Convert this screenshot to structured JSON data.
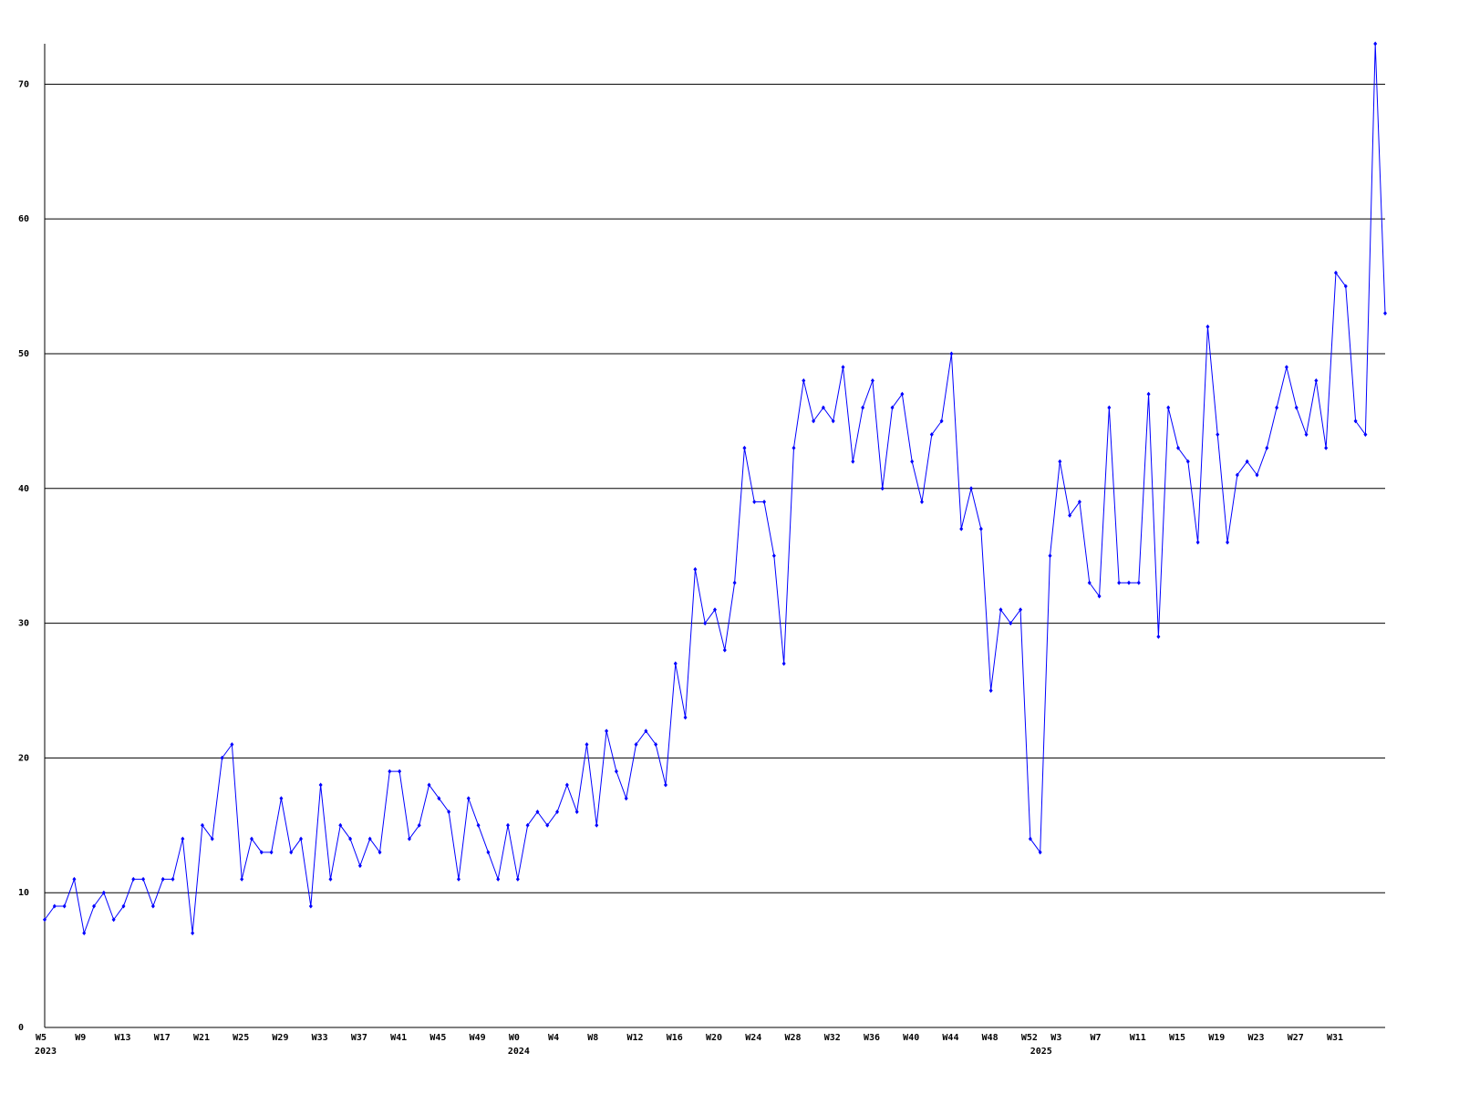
{
  "chart_data": {
    "type": "line",
    "categories": [
      "W5",
      null,
      null,
      null,
      "W9",
      null,
      null,
      null,
      "W13",
      null,
      null,
      null,
      "W17",
      null,
      null,
      null,
      "W21",
      null,
      null,
      null,
      "W25",
      null,
      null,
      null,
      "W29",
      null,
      null,
      null,
      "W33",
      null,
      null,
      null,
      "W37",
      null,
      null,
      null,
      "W41",
      null,
      null,
      null,
      "W45",
      null,
      null,
      null,
      "W49",
      null,
      null,
      null,
      "W0",
      null,
      null,
      null,
      "W4",
      null,
      null,
      null,
      "W8",
      null,
      null,
      null,
      "W12",
      null,
      null,
      null,
      "W16",
      null,
      null,
      null,
      "W20",
      null,
      null,
      null,
      "W24",
      null,
      null,
      null,
      "W28",
      null,
      null,
      null,
      "W32",
      null,
      null,
      null,
      "W36",
      null,
      null,
      null,
      "W40",
      null,
      null,
      null,
      "W44",
      null,
      null,
      null,
      "W48",
      null,
      null,
      null,
      "W52",
      null,
      null,
      "W3",
      null,
      null,
      null,
      "W7",
      null,
      null,
      null,
      "W11",
      null,
      null,
      null,
      "W15",
      null,
      null,
      null,
      "W19",
      null,
      null,
      null,
      "W23",
      null,
      null,
      null,
      "W27",
      null,
      null,
      null,
      "W31",
      null,
      null,
      null,
      null,
      null
    ],
    "category_years": [
      "2023",
      null,
      null,
      null,
      null,
      null,
      null,
      null,
      null,
      null,
      null,
      null,
      null,
      null,
      null,
      null,
      null,
      null,
      null,
      null,
      null,
      null,
      null,
      null,
      null,
      null,
      null,
      null,
      null,
      null,
      null,
      null,
      null,
      null,
      null,
      null,
      null,
      null,
      null,
      null,
      null,
      null,
      null,
      null,
      null,
      null,
      null,
      null,
      "2024",
      null,
      null,
      null,
      null,
      null,
      null,
      null,
      null,
      null,
      null,
      null,
      null,
      null,
      null,
      null,
      null,
      null,
      null,
      null,
      null,
      null,
      null,
      null,
      null,
      null,
      null,
      null,
      null,
      null,
      null,
      null,
      null,
      null,
      null,
      null,
      null,
      null,
      null,
      null,
      null,
      null,
      null,
      null,
      null,
      null,
      null,
      null,
      null,
      null,
      null,
      null,
      null,
      "2025",
      null,
      null,
      null,
      null,
      null,
      null,
      null,
      null,
      null,
      null,
      null,
      null,
      null,
      null,
      null,
      null,
      null,
      null,
      null,
      null,
      null,
      null,
      null,
      null,
      null,
      null,
      null,
      null,
      null,
      null,
      null,
      null,
      null,
      null,
      null
    ],
    "series": [
      {
        "color": "#0000ff",
        "values": [
          8,
          9,
          9,
          11,
          7,
          9,
          10,
          8,
          9,
          11,
          11,
          9,
          11,
          11,
          14,
          7,
          15,
          14,
          20,
          21,
          11,
          14,
          13,
          13,
          17,
          13,
          14,
          9,
          18,
          11,
          15,
          14,
          12,
          14,
          13,
          19,
          19,
          14,
          15,
          18,
          17,
          16,
          11,
          17,
          15,
          13,
          11,
          15,
          11,
          15,
          16,
          15,
          16,
          18,
          16,
          21,
          15,
          22,
          19,
          17,
          21,
          22,
          21,
          18,
          27,
          23,
          34,
          30,
          31,
          28,
          33,
          43,
          39,
          39,
          35,
          27,
          43,
          48,
          45,
          46,
          45,
          49,
          42,
          46,
          48,
          40,
          46,
          47,
          42,
          39,
          44,
          45,
          50,
          37,
          40,
          37,
          25,
          31,
          30,
          31,
          14,
          13,
          35,
          42,
          38,
          39,
          33,
          32,
          46,
          33,
          33,
          33,
          47,
          29,
          46,
          43,
          42,
          36,
          52,
          44,
          36,
          41,
          42,
          41,
          43,
          46,
          49,
          46,
          44,
          48,
          43,
          56,
          55,
          45,
          44,
          73,
          53
        ]
      }
    ],
    "ylim": [
      0,
      73
    ],
    "yticks": [
      0,
      10,
      20,
      30,
      40,
      50,
      60,
      70
    ],
    "grid": true
  }
}
